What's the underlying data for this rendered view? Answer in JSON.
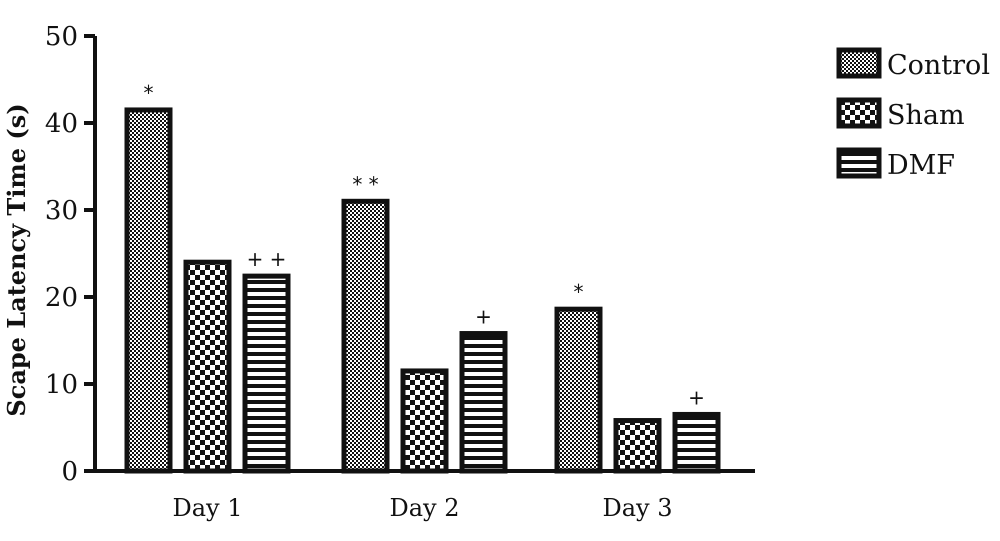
{
  "chart_data": {
    "type": "bar",
    "title": "",
    "xlabel": "",
    "ylabel": "Scape Latency Time (s)",
    "ylim": [
      0,
      50
    ],
    "yticks": [
      "0",
      "10",
      "20",
      "30",
      "40",
      "50"
    ],
    "categories": [
      "Day 1",
      "Day 2",
      "Day 3"
    ],
    "series": [
      {
        "name": "Control",
        "values": [
          41.5,
          31,
          18.6
        ],
        "annotations": [
          "*",
          "* *",
          "*"
        ]
      },
      {
        "name": "Sham",
        "values": [
          24,
          11.5,
          5.8
        ],
        "annotations": [
          "",
          "",
          ""
        ]
      },
      {
        "name": "DMF",
        "values": [
          22.4,
          15.8,
          6.5
        ],
        "annotations": [
          "+ +",
          "+",
          "+"
        ]
      }
    ],
    "grid": false,
    "legend_position": "top-right",
    "fill_patterns": [
      "fine-checker",
      "coarse-checker",
      "horizontal-stripes"
    ],
    "colors": {
      "ink": "#111111",
      "background": "#ffffff"
    }
  }
}
